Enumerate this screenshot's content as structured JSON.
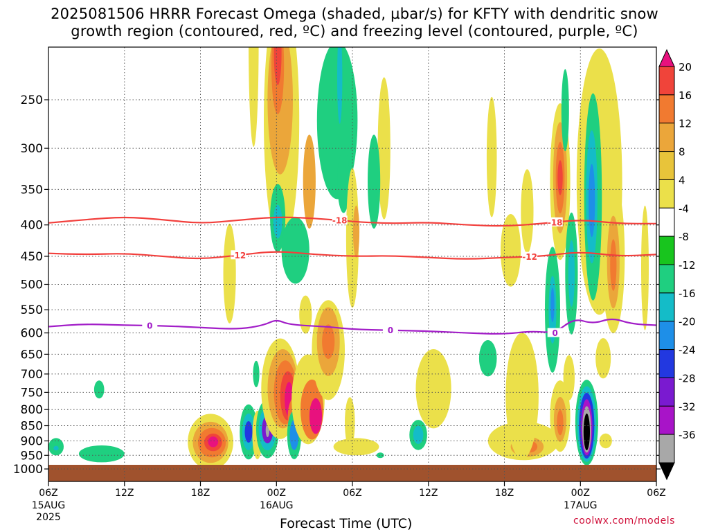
{
  "title": {
    "line1": "2025081506 HRRR Forecast Omega (shaded, µbar/s) for KFTY with dendritic snow",
    "line2": "growth region (contoured, red, ºC) and freezing level (contoured, purple, ºC)"
  },
  "credit": "coolwx.com/models",
  "chart_data": {
    "type": "heatmap",
    "xlabel": "Forecast Time (UTC)",
    "ylabel": "",
    "x_ticks": [
      {
        "label": "06Z",
        "sub": [
          "15AUG",
          "2025"
        ],
        "hour": 0
      },
      {
        "label": "12Z",
        "sub": [],
        "hour": 6
      },
      {
        "label": "18Z",
        "sub": [],
        "hour": 12
      },
      {
        "label": "00Z",
        "sub": [
          "16AUG"
        ],
        "hour": 18
      },
      {
        "label": "06Z",
        "sub": [],
        "hour": 24
      },
      {
        "label": "12Z",
        "sub": [],
        "hour": 30
      },
      {
        "label": "18Z",
        "sub": [],
        "hour": 36
      },
      {
        "label": "00Z",
        "sub": [
          "17AUG"
        ],
        "hour": 42
      },
      {
        "label": "06Z",
        "sub": [],
        "hour": 48
      }
    ],
    "xlim": [
      0,
      48
    ],
    "y_ticks": [
      250,
      300,
      350,
      400,
      450,
      500,
      550,
      600,
      650,
      700,
      750,
      800,
      850,
      900,
      950,
      1000
    ],
    "ylim_hpa": [
      1030,
      200
    ],
    "colorbar": {
      "units": "µbar/s",
      "levels": [
        20,
        16,
        12,
        8,
        4,
        -4,
        -8,
        -12,
        -16,
        -20,
        -24,
        -28,
        -32,
        -36
      ],
      "colors": [
        "#e8117e",
        "#f0443a",
        "#f17a30",
        "#eba63a",
        "#e8c43a",
        "#ebe04a",
        "#ffffff",
        "#18c51e",
        "#1fcf80",
        "#14bcc8",
        "#1e8fe8",
        "#2238e0",
        "#7a1ad0",
        "#a814c8",
        "#a8a8a8",
        "#000000"
      ]
    },
    "contours": [
      {
        "name": "-18",
        "color": "#f23f3c",
        "points": [
          [
            0,
            397
          ],
          [
            3,
            392
          ],
          [
            6,
            388
          ],
          [
            9,
            392
          ],
          [
            12,
            398
          ],
          [
            15,
            393
          ],
          [
            18,
            388
          ],
          [
            21,
            390
          ],
          [
            24,
            395
          ],
          [
            27,
            398
          ],
          [
            30,
            396
          ],
          [
            33,
            400
          ],
          [
            36,
            402
          ],
          [
            39,
            398
          ],
          [
            42,
            392
          ],
          [
            45,
            398
          ],
          [
            48,
            398
          ]
        ]
      },
      {
        "name": "-12",
        "color": "#f23f3c",
        "points": [
          [
            0,
            445
          ],
          [
            3,
            447
          ],
          [
            6,
            445
          ],
          [
            9,
            450
          ],
          [
            12,
            455
          ],
          [
            15,
            448
          ],
          [
            18,
            441
          ],
          [
            21,
            447
          ],
          [
            24,
            450
          ],
          [
            27,
            449
          ],
          [
            30,
            452
          ],
          [
            33,
            455
          ],
          [
            36,
            452
          ],
          [
            39,
            450
          ],
          [
            42,
            442
          ],
          [
            45,
            450
          ],
          [
            48,
            447
          ]
        ]
      },
      {
        "name": "0",
        "color": "#a21ec8",
        "points": [
          [
            0,
            586
          ],
          [
            3,
            580
          ],
          [
            6,
            583
          ],
          [
            9,
            584
          ],
          [
            12,
            588
          ],
          [
            15,
            592
          ],
          [
            17,
            583
          ],
          [
            18,
            570
          ],
          [
            19,
            582
          ],
          [
            22,
            586
          ],
          [
            24,
            592
          ],
          [
            27,
            594
          ],
          [
            30,
            596
          ],
          [
            33,
            600
          ],
          [
            36,
            603
          ],
          [
            38,
            596
          ],
          [
            40,
            600
          ],
          [
            41.5,
            568
          ],
          [
            43,
            580
          ],
          [
            44.5,
            567
          ],
          [
            46,
            580
          ],
          [
            48,
            583
          ]
        ]
      }
    ],
    "regions": [
      {
        "hour": 0.6,
        "hpa": 920,
        "rx": 0.6,
        "rh": 30,
        "value": -8
      },
      {
        "hour": 0.6,
        "hpa": 925,
        "rx": 0.2,
        "rh": 8,
        "value": -12
      },
      {
        "hour": 4.2,
        "hpa": 945,
        "rx": 1.8,
        "rh": 30,
        "value": -8
      },
      {
        "hour": 4.0,
        "hpa": 742,
        "rx": 0.4,
        "rh": 25,
        "value": -8
      },
      {
        "hour": 12.8,
        "hpa": 903,
        "rx": 1.8,
        "rh": 95,
        "value": 4
      },
      {
        "hour": 12.8,
        "hpa": 905,
        "rx": 1.4,
        "rh": 70,
        "value": 8
      },
      {
        "hour": 12.9,
        "hpa": 906,
        "rx": 1.1,
        "rh": 50,
        "value": 12
      },
      {
        "hour": 13.0,
        "hpa": 905,
        "rx": 0.7,
        "rh": 30,
        "value": 16
      },
      {
        "hour": 13.0,
        "hpa": 903,
        "rx": 0.4,
        "rh": 18,
        "value": 20
      },
      {
        "hour": 14.3,
        "hpa": 480,
        "rx": 0.5,
        "rh": 90,
        "value": 4
      },
      {
        "hour": 16.2,
        "hpa": 200,
        "rx": 0.4,
        "rh": 80,
        "value": 4
      },
      {
        "hour": 15.8,
        "hpa": 870,
        "rx": 0.7,
        "rh": 90,
        "value": -8
      },
      {
        "hour": 15.8,
        "hpa": 870,
        "rx": 0.5,
        "rh": 60,
        "value": -12
      },
      {
        "hour": 15.8,
        "hpa": 870,
        "rx": 0.3,
        "rh": 35,
        "value": -20
      },
      {
        "hour": 16.5,
        "hpa": 880,
        "rx": 0.4,
        "rh": 80,
        "value": 4
      },
      {
        "hour": 16.4,
        "hpa": 700,
        "rx": 0.25,
        "rh": 35,
        "value": -8
      },
      {
        "hour": 17.3,
        "hpa": 860,
        "rx": 0.9,
        "rh": 95,
        "value": -8
      },
      {
        "hour": 17.3,
        "hpa": 860,
        "rx": 0.7,
        "rh": 70,
        "value": -12
      },
      {
        "hour": 17.3,
        "hpa": 862,
        "rx": 0.45,
        "rh": 45,
        "value": -24
      },
      {
        "hour": 17.3,
        "hpa": 865,
        "rx": 0.15,
        "rh": 22,
        "value": -32
      },
      {
        "hour": 18.4,
        "hpa": 270,
        "rx": 1.4,
        "rh": 130,
        "value": 4
      },
      {
        "hour": 18.3,
        "hpa": 250,
        "rx": 1.0,
        "rh": 70,
        "value": 8
      },
      {
        "hour": 18.1,
        "hpa": 220,
        "rx": 0.5,
        "rh": 40,
        "value": 12
      },
      {
        "hour": 18.1,
        "hpa": 210,
        "rx": 0.3,
        "rh": 25,
        "value": 16
      },
      {
        "hour": 18.1,
        "hpa": 390,
        "rx": 0.6,
        "rh": 50,
        "value": -8
      },
      {
        "hour": 18.1,
        "hpa": 395,
        "rx": 0.35,
        "rh": 25,
        "value": -12
      },
      {
        "hour": 19.5,
        "hpa": 440,
        "rx": 1.1,
        "rh": 55,
        "value": -8
      },
      {
        "hour": 18.3,
        "hpa": 740,
        "rx": 1.5,
        "rh": 140,
        "value": 4
      },
      {
        "hour": 18.5,
        "hpa": 740,
        "rx": 1.2,
        "rh": 110,
        "value": 8
      },
      {
        "hour": 18.7,
        "hpa": 750,
        "rx": 0.9,
        "rh": 90,
        "value": 12
      },
      {
        "hour": 18.9,
        "hpa": 760,
        "rx": 0.6,
        "rh": 70,
        "value": 16
      },
      {
        "hour": 19.0,
        "hpa": 770,
        "rx": 0.35,
        "rh": 50,
        "value": 20
      },
      {
        "hour": 19.5,
        "hpa": 820,
        "rx": 0.6,
        "rh": 60,
        "value": 12
      },
      {
        "hour": 19.4,
        "hpa": 880,
        "rx": 0.55,
        "rh": 80,
        "value": -8
      },
      {
        "hour": 19.4,
        "hpa": 880,
        "rx": 0.35,
        "rh": 50,
        "value": -16
      },
      {
        "hour": 20.5,
        "hpa": 770,
        "rx": 1.3,
        "rh": 130,
        "value": 4
      },
      {
        "hour": 20.8,
        "hpa": 800,
        "rx": 0.9,
        "rh": 90,
        "value": 12
      },
      {
        "hour": 21.1,
        "hpa": 820,
        "rx": 0.5,
        "rh": 55,
        "value": 20
      },
      {
        "hour": 20.6,
        "hpa": 340,
        "rx": 0.5,
        "rh": 60,
        "value": 8
      },
      {
        "hour": 20.3,
        "hpa": 560,
        "rx": 0.5,
        "rh": 40,
        "value": 4
      },
      {
        "hour": 22.8,
        "hpa": 270,
        "rx": 1.6,
        "rh": 80,
        "value": -8
      },
      {
        "hour": 23.3,
        "hpa": 340,
        "rx": 0.5,
        "rh": 40,
        "value": -8
      },
      {
        "hour": 23.0,
        "hpa": 230,
        "rx": 0.2,
        "rh": 40,
        "value": -12
      },
      {
        "hour": 22.1,
        "hpa": 640,
        "rx": 1.3,
        "rh": 120,
        "value": 4
      },
      {
        "hour": 22.1,
        "hpa": 620,
        "rx": 0.9,
        "rh": 80,
        "value": 8
      },
      {
        "hour": 22.1,
        "hpa": 620,
        "rx": 0.5,
        "rh": 40,
        "value": 12
      },
      {
        "hour": 24.0,
        "hpa": 420,
        "rx": 0.5,
        "rh": 110,
        "value": 4
      },
      {
        "hour": 24.3,
        "hpa": 410,
        "rx": 0.25,
        "rh": 40,
        "value": 8
      },
      {
        "hour": 23.8,
        "hpa": 840,
        "rx": 0.4,
        "rh": 80,
        "value": 4
      },
      {
        "hour": 24.3,
        "hpa": 920,
        "rx": 1.8,
        "rh": 30,
        "value": 4
      },
      {
        "hour": 26.5,
        "hpa": 300,
        "rx": 0.5,
        "rh": 80,
        "value": 4
      },
      {
        "hour": 25.7,
        "hpa": 340,
        "rx": 0.5,
        "rh": 60,
        "value": -8
      },
      {
        "hour": 26.2,
        "hpa": 950,
        "rx": 0.3,
        "rh": 10,
        "value": -8
      },
      {
        "hour": 29.2,
        "hpa": 880,
        "rx": 0.7,
        "rh": 50,
        "value": -8
      },
      {
        "hour": 29.2,
        "hpa": 880,
        "rx": 0.4,
        "rh": 30,
        "value": -12
      },
      {
        "hour": 30.4,
        "hpa": 740,
        "rx": 1.4,
        "rh": 110,
        "value": 4
      },
      {
        "hour": 34.7,
        "hpa": 660,
        "rx": 0.7,
        "rh": 45,
        "value": -8
      },
      {
        "hour": 35.0,
        "hpa": 310,
        "rx": 0.4,
        "rh": 70,
        "value": 4
      },
      {
        "hour": 37.5,
        "hpa": 900,
        "rx": 2.8,
        "rh": 65,
        "value": 4
      },
      {
        "hour": 37.8,
        "hpa": 920,
        "rx": 1.3,
        "rh": 35,
        "value": 8
      },
      {
        "hour": 38.0,
        "hpa": 920,
        "rx": 0.6,
        "rh": 20,
        "value": 12
      },
      {
        "hour": 36.5,
        "hpa": 440,
        "rx": 0.8,
        "rh": 60,
        "value": 4
      },
      {
        "hour": 37.8,
        "hpa": 380,
        "rx": 0.5,
        "rh": 60,
        "value": 4
      },
      {
        "hour": 37.4,
        "hpa": 760,
        "rx": 1.3,
        "rh": 180,
        "value": 4
      },
      {
        "hour": 39.8,
        "hpa": 550,
        "rx": 0.6,
        "rh": 130,
        "value": -8
      },
      {
        "hour": 39.8,
        "hpa": 550,
        "rx": 0.3,
        "rh": 70,
        "value": -12
      },
      {
        "hour": 39.8,
        "hpa": 540,
        "rx": 0.15,
        "rh": 35,
        "value": -16
      },
      {
        "hour": 40.4,
        "hpa": 340,
        "rx": 0.8,
        "rh": 100,
        "value": 4
      },
      {
        "hour": 40.4,
        "hpa": 335,
        "rx": 0.55,
        "rh": 70,
        "value": 8
      },
      {
        "hour": 40.4,
        "hpa": 335,
        "rx": 0.35,
        "rh": 45,
        "value": 12
      },
      {
        "hour": 40.4,
        "hpa": 335,
        "rx": 0.2,
        "rh": 22,
        "value": 16
      },
      {
        "hour": 40.4,
        "hpa": 820,
        "rx": 0.8,
        "rh": 110,
        "value": 4
      },
      {
        "hour": 40.4,
        "hpa": 830,
        "rx": 0.5,
        "rh": 70,
        "value": 8
      },
      {
        "hour": 40.4,
        "hpa": 840,
        "rx": 0.25,
        "rh": 40,
        "value": 12
      },
      {
        "hour": 41.3,
        "hpa": 480,
        "rx": 0.5,
        "rh": 110,
        "value": -8
      },
      {
        "hour": 41.3,
        "hpa": 480,
        "rx": 0.25,
        "rh": 60,
        "value": -12
      },
      {
        "hour": 41.1,
        "hpa": 710,
        "rx": 0.45,
        "rh": 60,
        "value": 4
      },
      {
        "hour": 40.8,
        "hpa": 260,
        "rx": 0.3,
        "rh": 40,
        "value": -8
      },
      {
        "hour": 43.5,
        "hpa": 340,
        "rx": 1.8,
        "rh": 170,
        "value": 4
      },
      {
        "hour": 43.0,
        "hpa": 360,
        "rx": 0.7,
        "rh": 140,
        "value": -8
      },
      {
        "hour": 42.9,
        "hpa": 360,
        "rx": 0.45,
        "rh": 90,
        "value": -12
      },
      {
        "hour": 42.9,
        "hpa": 365,
        "rx": 0.25,
        "rh": 50,
        "value": -16
      },
      {
        "hour": 44.6,
        "hpa": 450,
        "rx": 0.9,
        "rh": 130,
        "value": 4
      },
      {
        "hour": 44.6,
        "hpa": 460,
        "rx": 0.5,
        "rh": 80,
        "value": 8
      },
      {
        "hour": 44.6,
        "hpa": 465,
        "rx": 0.25,
        "rh": 45,
        "value": 12
      },
      {
        "hour": 42.5,
        "hpa": 840,
        "rx": 0.9,
        "rh": 135,
        "value": -8
      },
      {
        "hour": 42.5,
        "hpa": 845,
        "rx": 0.75,
        "rh": 120,
        "value": -12
      },
      {
        "hour": 42.5,
        "hpa": 850,
        "rx": 0.6,
        "rh": 105,
        "value": -20
      },
      {
        "hour": 42.5,
        "hpa": 855,
        "rx": 0.45,
        "rh": 90,
        "value": -28
      },
      {
        "hour": 42.5,
        "hpa": 862,
        "rx": 0.35,
        "rh": 75,
        "value": -32
      },
      {
        "hour": 42.5,
        "hpa": 870,
        "rx": 0.25,
        "rh": 60,
        "value": -36
      },
      {
        "hour": 44.0,
        "hpa": 900,
        "rx": 0.5,
        "rh": 25,
        "value": 4
      },
      {
        "hour": 43.8,
        "hpa": 660,
        "rx": 0.6,
        "rh": 50,
        "value": 4
      },
      {
        "hour": 47.1,
        "hpa": 470,
        "rx": 0.3,
        "rh": 110,
        "value": 4
      },
      {
        "hour": 33.0,
        "hpa": 1000,
        "rx": 0.0,
        "rh": 0,
        "value": 4
      }
    ]
  }
}
